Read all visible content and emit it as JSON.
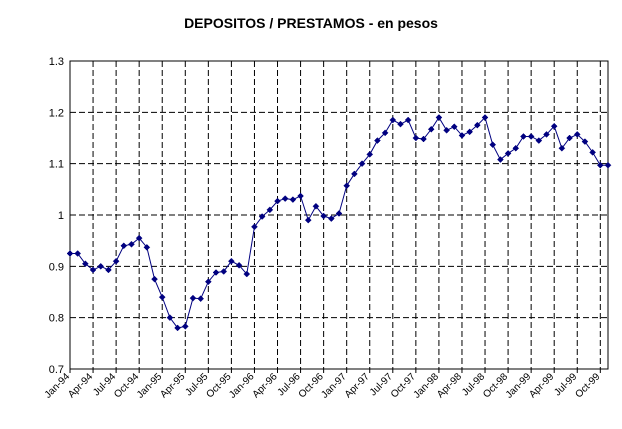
{
  "chart_data": {
    "type": "line",
    "title": "DEPOSITOS / PRESTAMOS - en pesos",
    "xlabel": "",
    "ylabel": "",
    "ylim": [
      0.7,
      1.3
    ],
    "yticks": [
      0.7,
      0.8,
      0.9,
      1,
      1.1,
      1.2,
      1.3
    ],
    "ytick_labels": [
      "0.7",
      "0.8",
      "0.9",
      "1",
      "1.1",
      "1.2",
      "1.3"
    ],
    "xtick_labels": [
      "Jan-94",
      "Apr-94",
      "Jul-94",
      "Oct-94",
      "Jan-95",
      "Apr-95",
      "Jul-95",
      "Oct-95",
      "Jan-96",
      "Apr-96",
      "Jul-96",
      "Oct-96",
      "Jan-97",
      "Apr-97",
      "Jul-97",
      "Oct-97",
      "Jan-98",
      "Apr-98",
      "Jul-98",
      "Oct-98",
      "Jan-99",
      "Apr-99",
      "Jul-99",
      "Oct-99"
    ],
    "grid": true,
    "grid_style": "dashed",
    "line_color": "#000080",
    "marker": "diamond",
    "series": [
      {
        "x": [
          "Jan-94",
          "Feb-94",
          "Mar-94",
          "Apr-94",
          "May-94",
          "Jun-94",
          "Jul-94",
          "Aug-94",
          "Sep-94",
          "Oct-94",
          "Nov-94",
          "Dec-94",
          "Jan-95",
          "Feb-95",
          "Mar-95",
          "Apr-95",
          "May-95",
          "Jun-95",
          "Jul-95",
          "Aug-95",
          "Sep-95",
          "Oct-95",
          "Nov-95",
          "Dec-95",
          "Jan-96",
          "Feb-96",
          "Mar-96",
          "Apr-96",
          "May-96",
          "Jun-96",
          "Jul-96",
          "Aug-96",
          "Sep-96",
          "Oct-96",
          "Nov-96",
          "Dec-96",
          "Jan-97",
          "Feb-97",
          "Mar-97",
          "Apr-97",
          "May-97",
          "Jun-97",
          "Jul-97",
          "Aug-97",
          "Sep-97",
          "Oct-97",
          "Nov-97",
          "Dec-97",
          "Jan-98",
          "Feb-98",
          "Mar-98",
          "Apr-98",
          "May-98",
          "Jun-98",
          "Jul-98",
          "Aug-98",
          "Sep-98",
          "Oct-98",
          "Nov-98",
          "Dec-98",
          "Jan-99",
          "Feb-99",
          "Mar-99",
          "Apr-99",
          "May-99",
          "Jun-99",
          "Jul-99",
          "Aug-99",
          "Sep-99",
          "Oct-99",
          "Nov-99"
        ],
        "values": [
          0.925,
          0.925,
          0.905,
          0.893,
          0.9,
          0.893,
          0.91,
          0.94,
          0.943,
          0.955,
          0.937,
          0.875,
          0.84,
          0.8,
          0.78,
          0.783,
          0.838,
          0.837,
          0.87,
          0.888,
          0.89,
          0.91,
          0.902,
          0.885,
          0.977,
          0.997,
          1.01,
          1.027,
          1.032,
          1.03,
          1.037,
          0.99,
          1.017,
          0.998,
          0.993,
          1.003,
          1.057,
          1.08,
          1.1,
          1.118,
          1.145,
          1.16,
          1.185,
          1.177,
          1.185,
          1.15,
          1.148,
          1.167,
          1.19,
          1.165,
          1.172,
          1.155,
          1.162,
          1.175,
          1.19,
          1.137,
          1.108,
          1.12,
          1.13,
          1.153,
          1.153,
          1.145,
          1.157,
          1.173,
          1.13,
          1.15,
          1.157,
          1.143,
          1.122,
          1.097,
          1.097
        ]
      }
    ]
  }
}
